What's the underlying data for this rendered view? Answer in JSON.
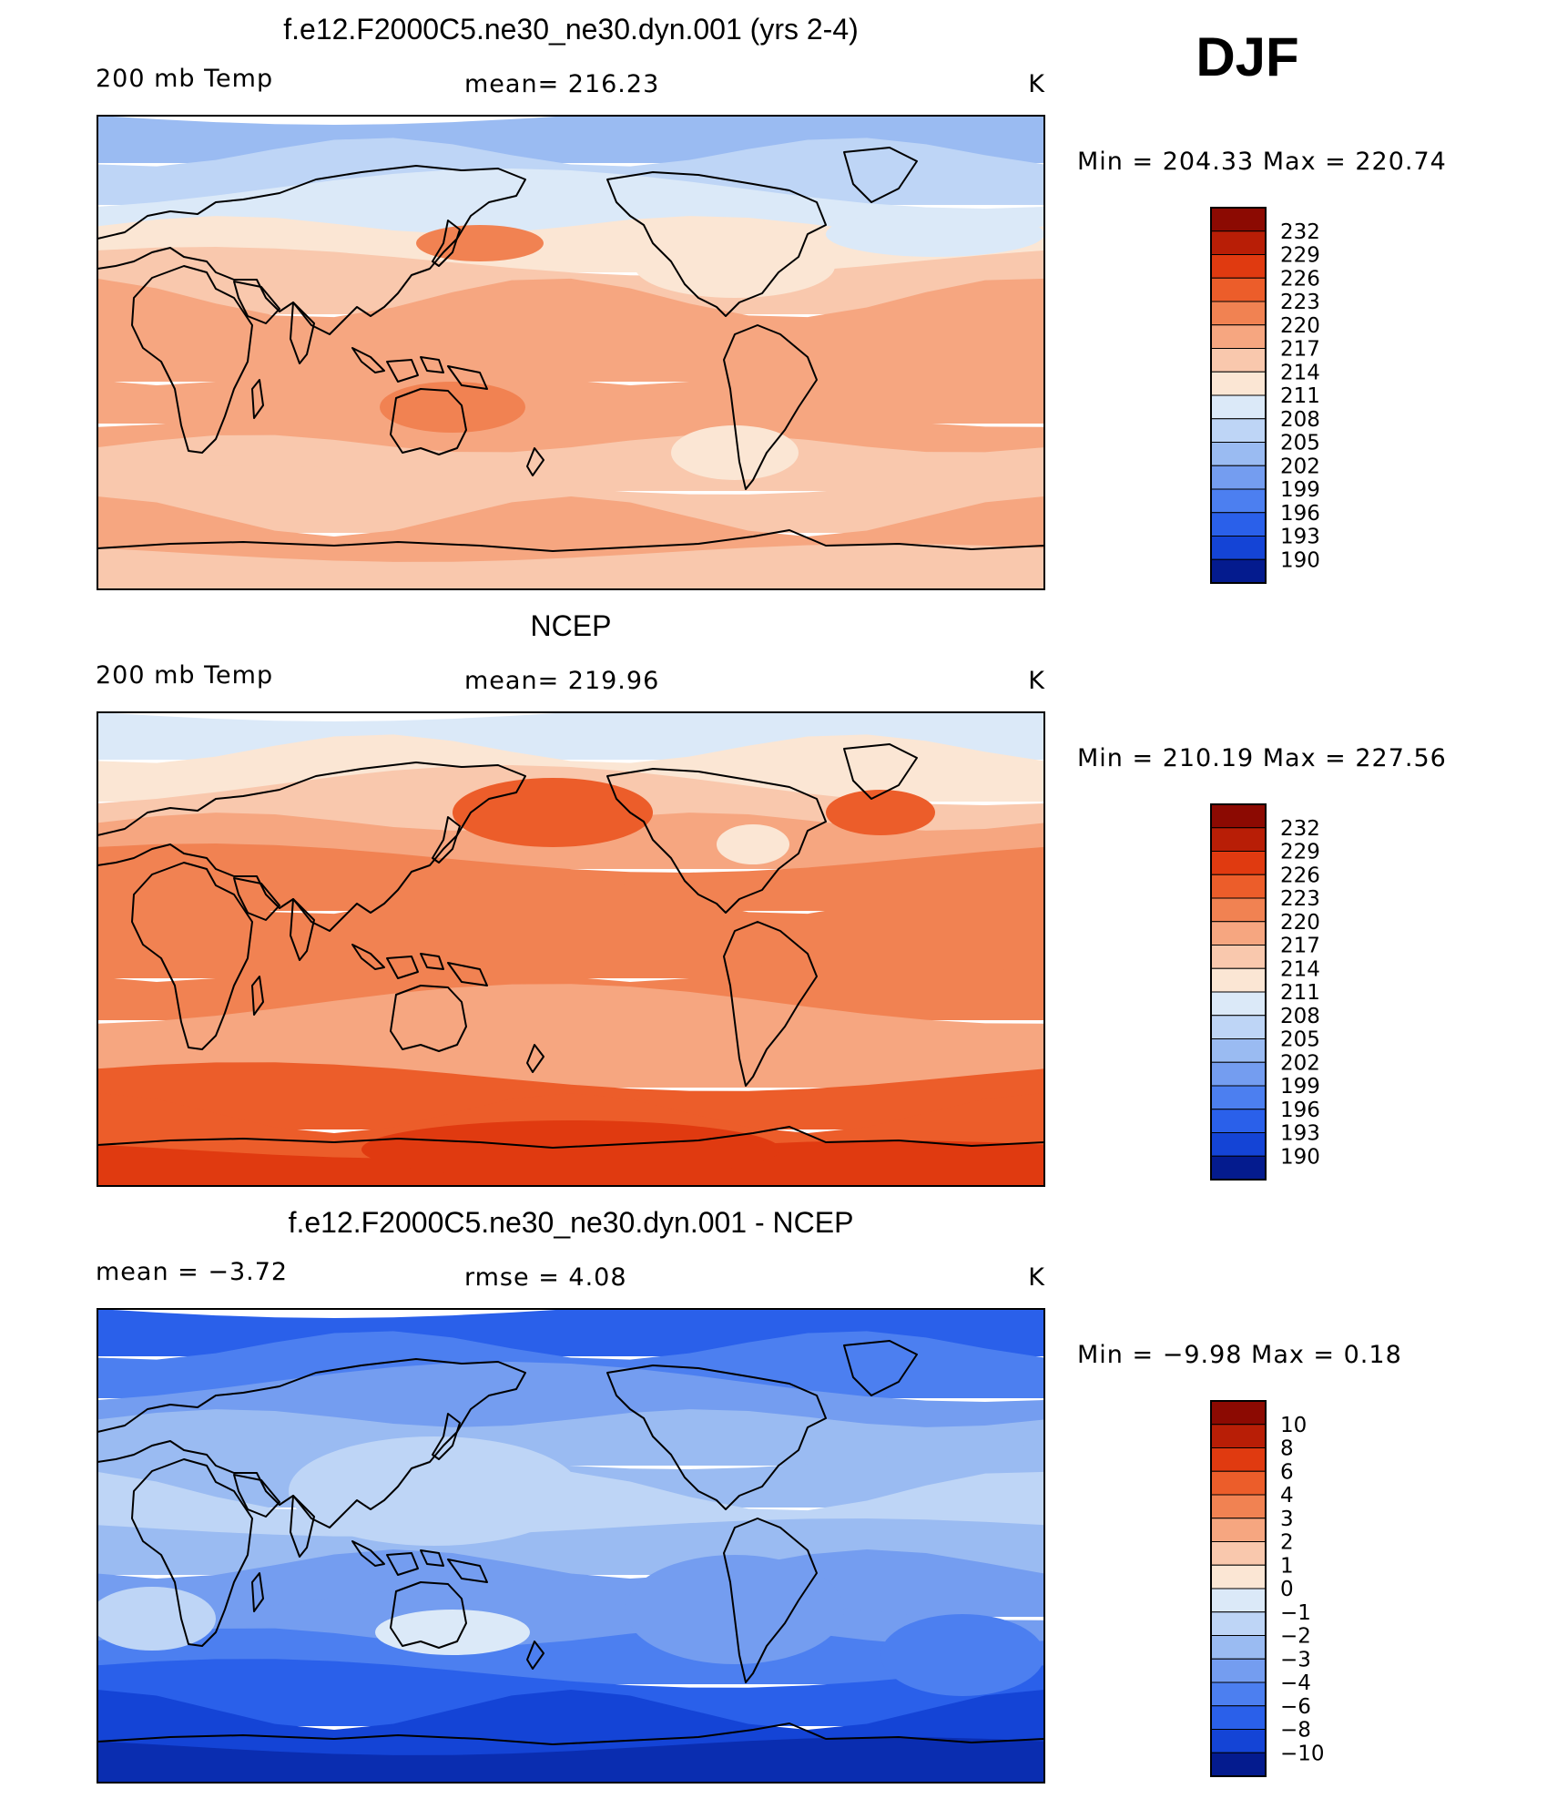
{
  "season": "DJF",
  "colors": {
    "warm": [
      "#fbe6d4",
      "#f9c8ad",
      "#f6a680",
      "#f18252",
      "#ec5d2a",
      "#e03a10",
      "#b81e06",
      "#8c0a02"
    ],
    "cool": [
      "#dbe9f8",
      "#bed5f6",
      "#9abbf2",
      "#749df0",
      "#4c7ff0",
      "#2a60ea",
      "#1444d6",
      "#0a2db0",
      "#041b8e"
    ]
  },
  "chart_data": [
    {
      "type": "heatmap",
      "title": "f.e12.F2000C5.ne30_ne30.dyn.001 (yrs 2-4)",
      "left_label": "200 mb Temp",
      "center_label": "mean=  216.23",
      "units": "K",
      "stats": "Min  =  204.33  Max  =  220.74",
      "min": 204.33,
      "max": 220.74,
      "mean": 216.23,
      "colorbar_levels": [
        "232",
        "229",
        "226",
        "223",
        "220",
        "217",
        "214",
        "211",
        "208",
        "205",
        "202",
        "199",
        "196",
        "193",
        "190"
      ],
      "colorbar_colors": [
        "#8c0a02",
        "#b81e06",
        "#e03a10",
        "#ec5d2a",
        "#f18252",
        "#f6a680",
        "#f9c8ad",
        "#fbe6d4",
        "#dbe9f8",
        "#bed5f6",
        "#9abbf2",
        "#749df0",
        "#4c7ff0",
        "#2a60ea",
        "#1444d6",
        "#041b8e"
      ]
    },
    {
      "type": "heatmap",
      "title": "NCEP",
      "left_label": "200 mb Temp",
      "center_label": "mean=  219.96",
      "units": "K",
      "stats": "Min  =  210.19  Max  =  227.56",
      "min": 210.19,
      "max": 227.56,
      "mean": 219.96,
      "colorbar_levels": [
        "232",
        "229",
        "226",
        "223",
        "220",
        "217",
        "214",
        "211",
        "208",
        "205",
        "202",
        "199",
        "196",
        "193",
        "190"
      ],
      "colorbar_colors": [
        "#8c0a02",
        "#b81e06",
        "#e03a10",
        "#ec5d2a",
        "#f18252",
        "#f6a680",
        "#f9c8ad",
        "#fbe6d4",
        "#dbe9f8",
        "#bed5f6",
        "#9abbf2",
        "#749df0",
        "#4c7ff0",
        "#2a60ea",
        "#1444d6",
        "#041b8e"
      ]
    },
    {
      "type": "heatmap",
      "title": "f.e12.F2000C5.ne30_ne30.dyn.001 - NCEP",
      "left_label": "mean =     −3.72",
      "center_label": "rmse  =      4.08",
      "units": "K",
      "stats": "Min  =     −9.98  Max  =      0.18",
      "min": -9.98,
      "max": 0.18,
      "mean": -3.72,
      "rmse": 4.08,
      "colorbar_levels": [
        "10",
        "8",
        "6",
        "4",
        "3",
        "2",
        "1",
        "0",
        "−1",
        "−2",
        "−3",
        "−4",
        "−6",
        "−8",
        "−10"
      ],
      "colorbar_colors": [
        "#8c0a02",
        "#b81e06",
        "#e03a10",
        "#ec5d2a",
        "#f18252",
        "#f6a680",
        "#f9c8ad",
        "#fbe6d4",
        "#dbe9f8",
        "#bed5f6",
        "#9abbf2",
        "#749df0",
        "#4c7ff0",
        "#2a60ea",
        "#1444d6",
        "#041b8e"
      ]
    }
  ]
}
